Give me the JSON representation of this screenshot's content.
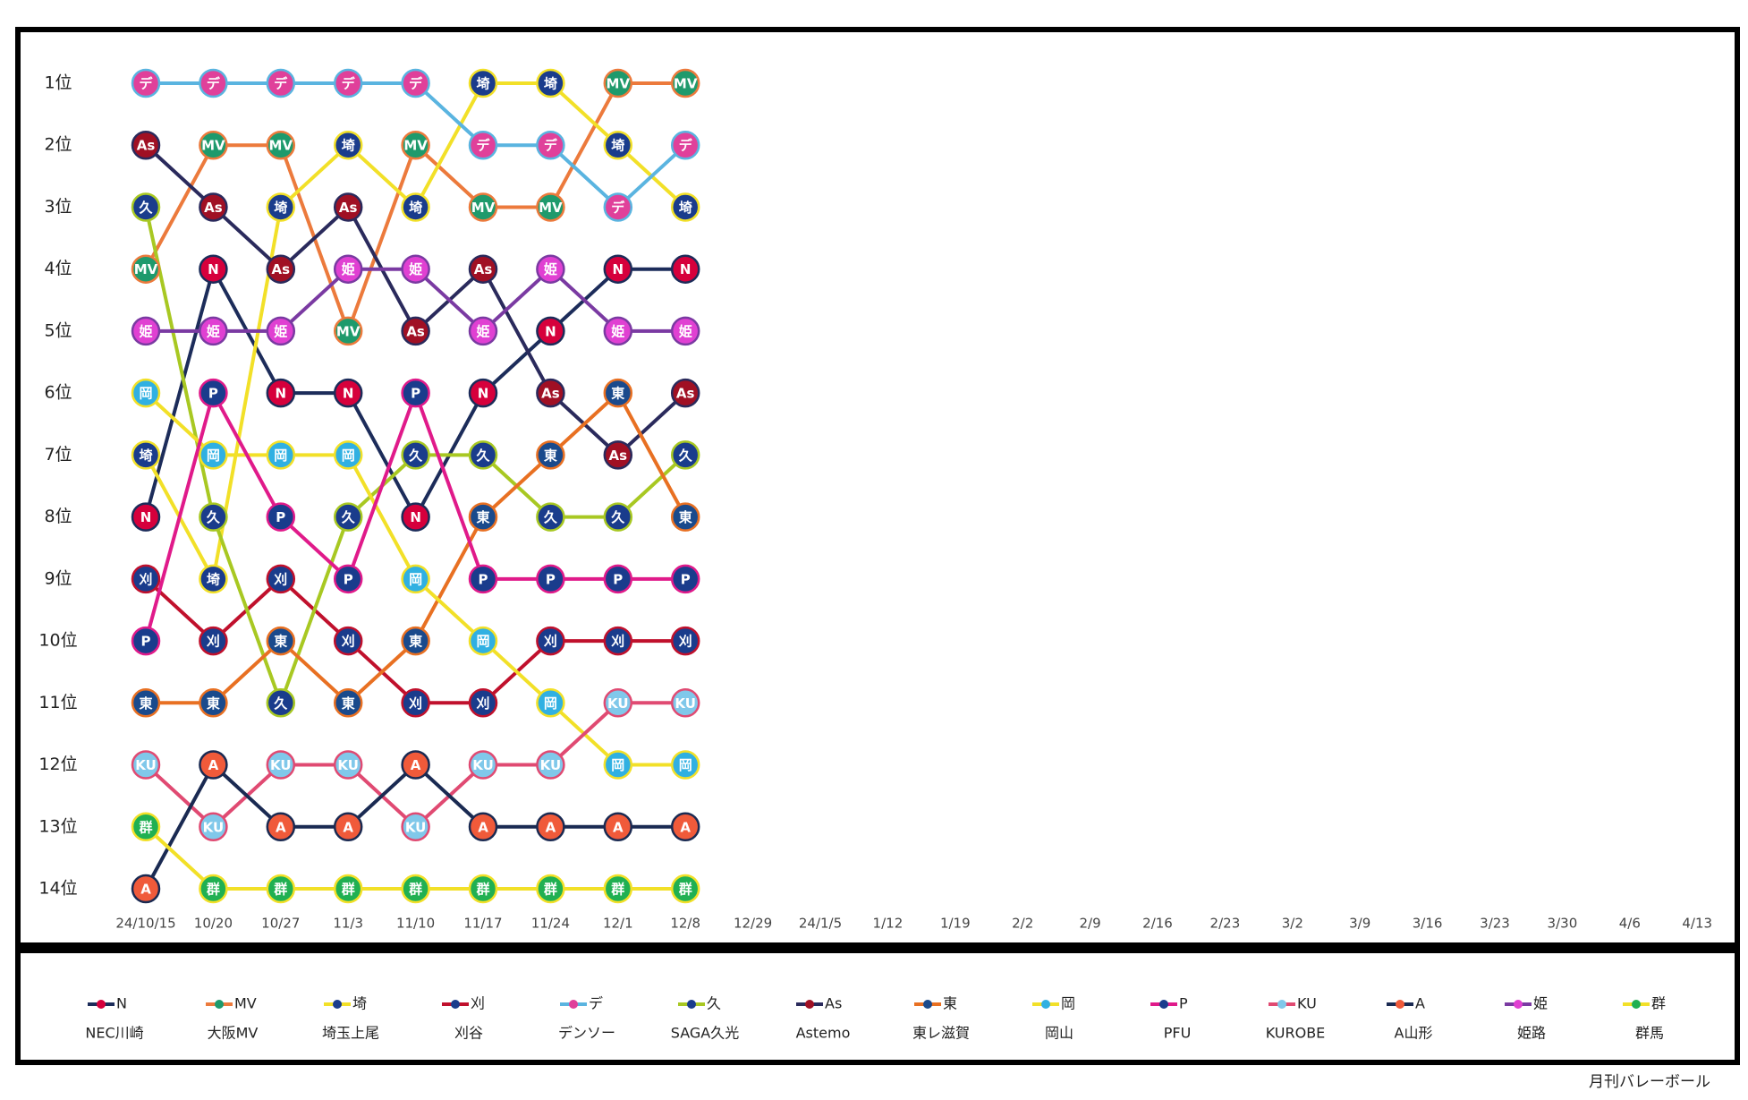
{
  "chart_data": {
    "type": "bump",
    "categories": [
      "24/10/15",
      "10/20",
      "10/27",
      "11/3",
      "11/10",
      "11/17",
      "11/24",
      "12/1",
      "12/8",
      "12/29",
      "24/1/5",
      "1/12",
      "1/19",
      "2/2",
      "2/9",
      "2/16",
      "2/23",
      "3/2",
      "3/9",
      "3/16",
      "3/23",
      "3/30",
      "4/6",
      "4/13"
    ],
    "ylim": [
      1,
      14
    ],
    "y_inverted": true,
    "yticks": [
      {
        "value": 1,
        "label": "1位"
      },
      {
        "value": 2,
        "label": "2位"
      },
      {
        "value": 3,
        "label": "3位"
      },
      {
        "value": 4,
        "label": "4位"
      },
      {
        "value": 5,
        "label": "5位"
      },
      {
        "value": 6,
        "label": "6位"
      },
      {
        "value": 7,
        "label": "7位"
      },
      {
        "value": 8,
        "label": "8位"
      },
      {
        "value": 9,
        "label": "9位"
      },
      {
        "value": 10,
        "label": "10位"
      },
      {
        "value": 11,
        "label": "11位"
      },
      {
        "value": 12,
        "label": "12位"
      },
      {
        "value": 13,
        "label": "13位"
      },
      {
        "value": 14,
        "label": "14位"
      }
    ],
    "series": [
      {
        "name": "N",
        "label": "NEC川崎",
        "color": "#1c2c5a",
        "marker_color": "#d6003c",
        "values": [
          8,
          4,
          6,
          6,
          8,
          6,
          5,
          4,
          4,
          null,
          null,
          null,
          null,
          null,
          null,
          null,
          null,
          null,
          null,
          null,
          null,
          null,
          null,
          null
        ]
      },
      {
        "name": "MV",
        "label": "大阪MV",
        "color": "#ec7a3c",
        "marker_color": "#1e9a6c",
        "values": [
          4,
          2,
          2,
          5,
          2,
          3,
          3,
          1,
          1,
          null,
          null,
          null,
          null,
          null,
          null,
          null,
          null,
          null,
          null,
          null,
          null,
          null,
          null,
          null
        ]
      },
      {
        "name": "埼",
        "label": "埼玉上尾",
        "color": "#f2e028",
        "marker_color": "#1a3c8c",
        "values": [
          7,
          9,
          3,
          2,
          3,
          1,
          1,
          2,
          3,
          null,
          null,
          null,
          null,
          null,
          null,
          null,
          null,
          null,
          null,
          null,
          null,
          null,
          null,
          null
        ]
      },
      {
        "name": "刈",
        "label": "刈谷",
        "color": "#c0102c",
        "marker_color": "#1a3c8c",
        "values": [
          9,
          10,
          9,
          10,
          11,
          11,
          10,
          10,
          10,
          null,
          null,
          null,
          null,
          null,
          null,
          null,
          null,
          null,
          null,
          null,
          null,
          null,
          null,
          null
        ]
      },
      {
        "name": "デ",
        "label": "デンソー",
        "color": "#5ab4e0",
        "marker_color": "#e0409a",
        "values": [
          1,
          1,
          1,
          1,
          1,
          2,
          2,
          3,
          2,
          null,
          null,
          null,
          null,
          null,
          null,
          null,
          null,
          null,
          null,
          null,
          null,
          null,
          null,
          null
        ]
      },
      {
        "name": "久",
        "label": "SAGA久光",
        "color": "#a8c822",
        "marker_color": "#1a3c8c",
        "values": [
          3,
          8,
          11,
          8,
          7,
          7,
          8,
          8,
          7,
          null,
          null,
          null,
          null,
          null,
          null,
          null,
          null,
          null,
          null,
          null,
          null,
          null,
          null,
          null
        ]
      },
      {
        "name": "As",
        "label": "Astemo",
        "color": "#2a2a5c",
        "marker_color": "#a01024",
        "values": [
          2,
          3,
          4,
          3,
          5,
          4,
          6,
          7,
          6,
          null,
          null,
          null,
          null,
          null,
          null,
          null,
          null,
          null,
          null,
          null,
          null,
          null,
          null,
          null
        ]
      },
      {
        "name": "東",
        "label": "東レ滋賀",
        "color": "#e87022",
        "marker_color": "#1a4a8c",
        "values": [
          11,
          11,
          10,
          11,
          10,
          8,
          7,
          6,
          8,
          null,
          null,
          null,
          null,
          null,
          null,
          null,
          null,
          null,
          null,
          null,
          null,
          null,
          null,
          null
        ]
      },
      {
        "name": "岡",
        "label": "岡山",
        "color": "#f2e028",
        "marker_color": "#30b0e2",
        "values": [
          6,
          7,
          7,
          7,
          9,
          10,
          11,
          12,
          12,
          null,
          null,
          null,
          null,
          null,
          null,
          null,
          null,
          null,
          null,
          null,
          null,
          null,
          null,
          null
        ]
      },
      {
        "name": "P",
        "label": "PFU",
        "color": "#e01a8a",
        "marker_color": "#1a3c8c",
        "values": [
          10,
          6,
          8,
          9,
          6,
          9,
          9,
          9,
          9,
          null,
          null,
          null,
          null,
          null,
          null,
          null,
          null,
          null,
          null,
          null,
          null,
          null,
          null,
          null
        ]
      },
      {
        "name": "KU",
        "label": "KUROBE",
        "color": "#e04a72",
        "marker_color": "#80c8ea",
        "values": [
          12,
          13,
          12,
          12,
          13,
          12,
          12,
          11,
          11,
          null,
          null,
          null,
          null,
          null,
          null,
          null,
          null,
          null,
          null,
          null,
          null,
          null,
          null,
          null
        ]
      },
      {
        "name": "A",
        "label": "A山形",
        "color": "#1a2a52",
        "marker_color": "#f05a3a",
        "values": [
          14,
          12,
          13,
          13,
          12,
          13,
          13,
          13,
          13,
          null,
          null,
          null,
          null,
          null,
          null,
          null,
          null,
          null,
          null,
          null,
          null,
          null,
          null,
          null
        ]
      },
      {
        "name": "姫",
        "label": "姫路",
        "color": "#7a3aa2",
        "marker_color": "#e040d2",
        "values": [
          5,
          5,
          5,
          4,
          4,
          5,
          4,
          5,
          5,
          null,
          null,
          null,
          null,
          null,
          null,
          null,
          null,
          null,
          null,
          null,
          null,
          null,
          null,
          null
        ]
      },
      {
        "name": "群",
        "label": "群馬",
        "color": "#f2e028",
        "marker_color": "#20b052",
        "values": [
          13,
          14,
          14,
          14,
          14,
          14,
          14,
          14,
          14,
          null,
          null,
          null,
          null,
          null,
          null,
          null,
          null,
          null,
          null,
          null,
          null,
          null,
          null,
          null
        ]
      }
    ],
    "source": "月刊バレーボール"
  }
}
